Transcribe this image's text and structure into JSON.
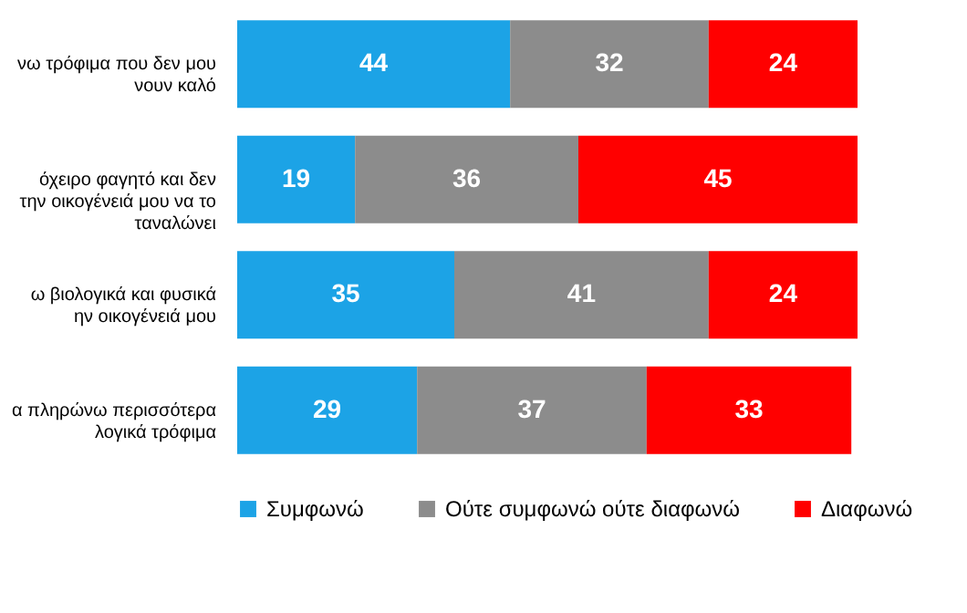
{
  "chart_data": {
    "type": "bar",
    "orientation": "horizontal",
    "stacked": true,
    "data_labels": true,
    "legend": "bottom",
    "categories": [
      "νω τρόφιμα που δεν μου\nνουν καλό",
      "όχειρο φαγητό και δεν\nτην οικογένειά μου να το\nταναλώνει",
      "ω βιολογικά και φυσικά\nην οικογένειά μου",
      "α πληρώνω περισσότερα\nλογικά τρόφιμα"
    ],
    "series": [
      {
        "name": "Συμφωνώ",
        "color": "#1ca3e6",
        "values": [
          44,
          19,
          35,
          29
        ]
      },
      {
        "name": "Ούτε συμφωνώ ούτε διαφωνώ",
        "color": "#8c8c8c",
        "values": [
          32,
          36,
          41,
          37
        ]
      },
      {
        "name": "Διαφωνώ",
        "color": "#ff0000",
        "values": [
          24,
          45,
          24,
          33
        ]
      }
    ]
  }
}
